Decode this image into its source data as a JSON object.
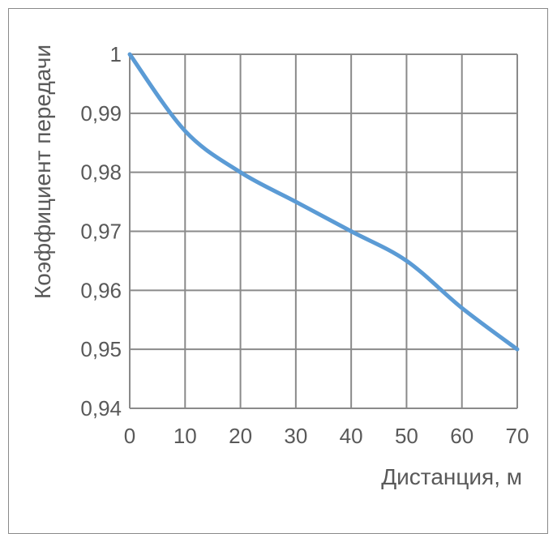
{
  "chart_data": {
    "type": "line",
    "title": "",
    "xlabel": "Дистанция, м",
    "ylabel": "Коэффициент передачи",
    "x_ticks": [
      "0",
      "10",
      "20",
      "30",
      "40",
      "50",
      "60",
      "70"
    ],
    "y_ticks": [
      "0,94",
      "0,95",
      "0,96",
      "0,97",
      "0,98",
      "0,99",
      "1"
    ],
    "xlim": [
      0,
      70
    ],
    "ylim": [
      0.94,
      1.0
    ],
    "grid": true,
    "series": [
      {
        "x": [
          0,
          10,
          20,
          30,
          40,
          50,
          60,
          70
        ],
        "y": [
          1.0,
          0.987,
          0.98,
          0.975,
          0.97,
          0.965,
          0.957,
          0.95
        ],
        "color": "#5b9bd5"
      }
    ]
  }
}
